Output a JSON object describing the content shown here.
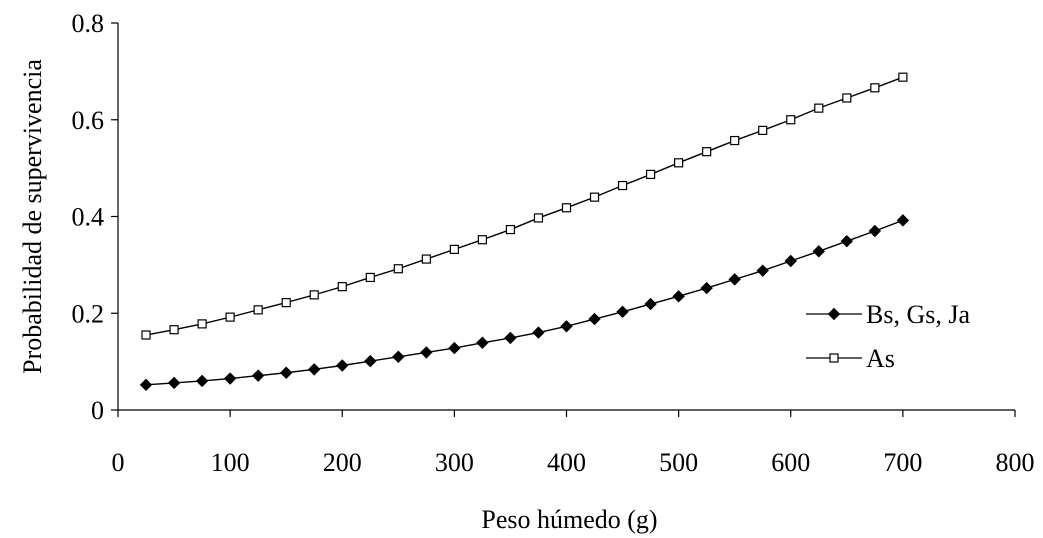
{
  "chart_data": {
    "type": "line",
    "xlabel": "Peso húmedo (g)",
    "ylabel": "Probabilidad de supervivencia",
    "xlim": [
      0,
      800
    ],
    "ylim": [
      0,
      0.8
    ],
    "xticks": [
      0,
      100,
      200,
      300,
      400,
      500,
      600,
      700,
      800
    ],
    "yticks": [
      0,
      0.2,
      0.4,
      0.6,
      0.8
    ],
    "xtick_labels": [
      "0",
      "100",
      "200",
      "300",
      "400",
      "500",
      "600",
      "700",
      "800"
    ],
    "ytick_labels": [
      "0",
      "0.2",
      "0.4",
      "0.6",
      "0.8"
    ],
    "grid": false,
    "legend_position": "right",
    "x": [
      25,
      50,
      75,
      100,
      125,
      150,
      175,
      200,
      225,
      250,
      275,
      300,
      325,
      350,
      375,
      400,
      425,
      450,
      475,
      500,
      525,
      550,
      575,
      600,
      625,
      650,
      675,
      700
    ],
    "series": [
      {
        "name": "Bs, Gs, Ja",
        "marker": "filled-diamond",
        "color": "#000000",
        "values": [
          0.052,
          0.056,
          0.06,
          0.065,
          0.071,
          0.077,
          0.084,
          0.092,
          0.101,
          0.11,
          0.119,
          0.128,
          0.139,
          0.149,
          0.16,
          0.173,
          0.188,
          0.203,
          0.219,
          0.235,
          0.252,
          0.27,
          0.288,
          0.308,
          0.328,
          0.349,
          0.37,
          0.392
        ]
      },
      {
        "name": "As",
        "marker": "open-square",
        "color": "#000000",
        "values": [
          0.155,
          0.166,
          0.178,
          0.192,
          0.207,
          0.222,
          0.238,
          0.255,
          0.274,
          0.292,
          0.312,
          0.332,
          0.352,
          0.373,
          0.397,
          0.418,
          0.44,
          0.464,
          0.487,
          0.511,
          0.534,
          0.557,
          0.578,
          0.6,
          0.624,
          0.645,
          0.666,
          0.688
        ]
      }
    ]
  }
}
